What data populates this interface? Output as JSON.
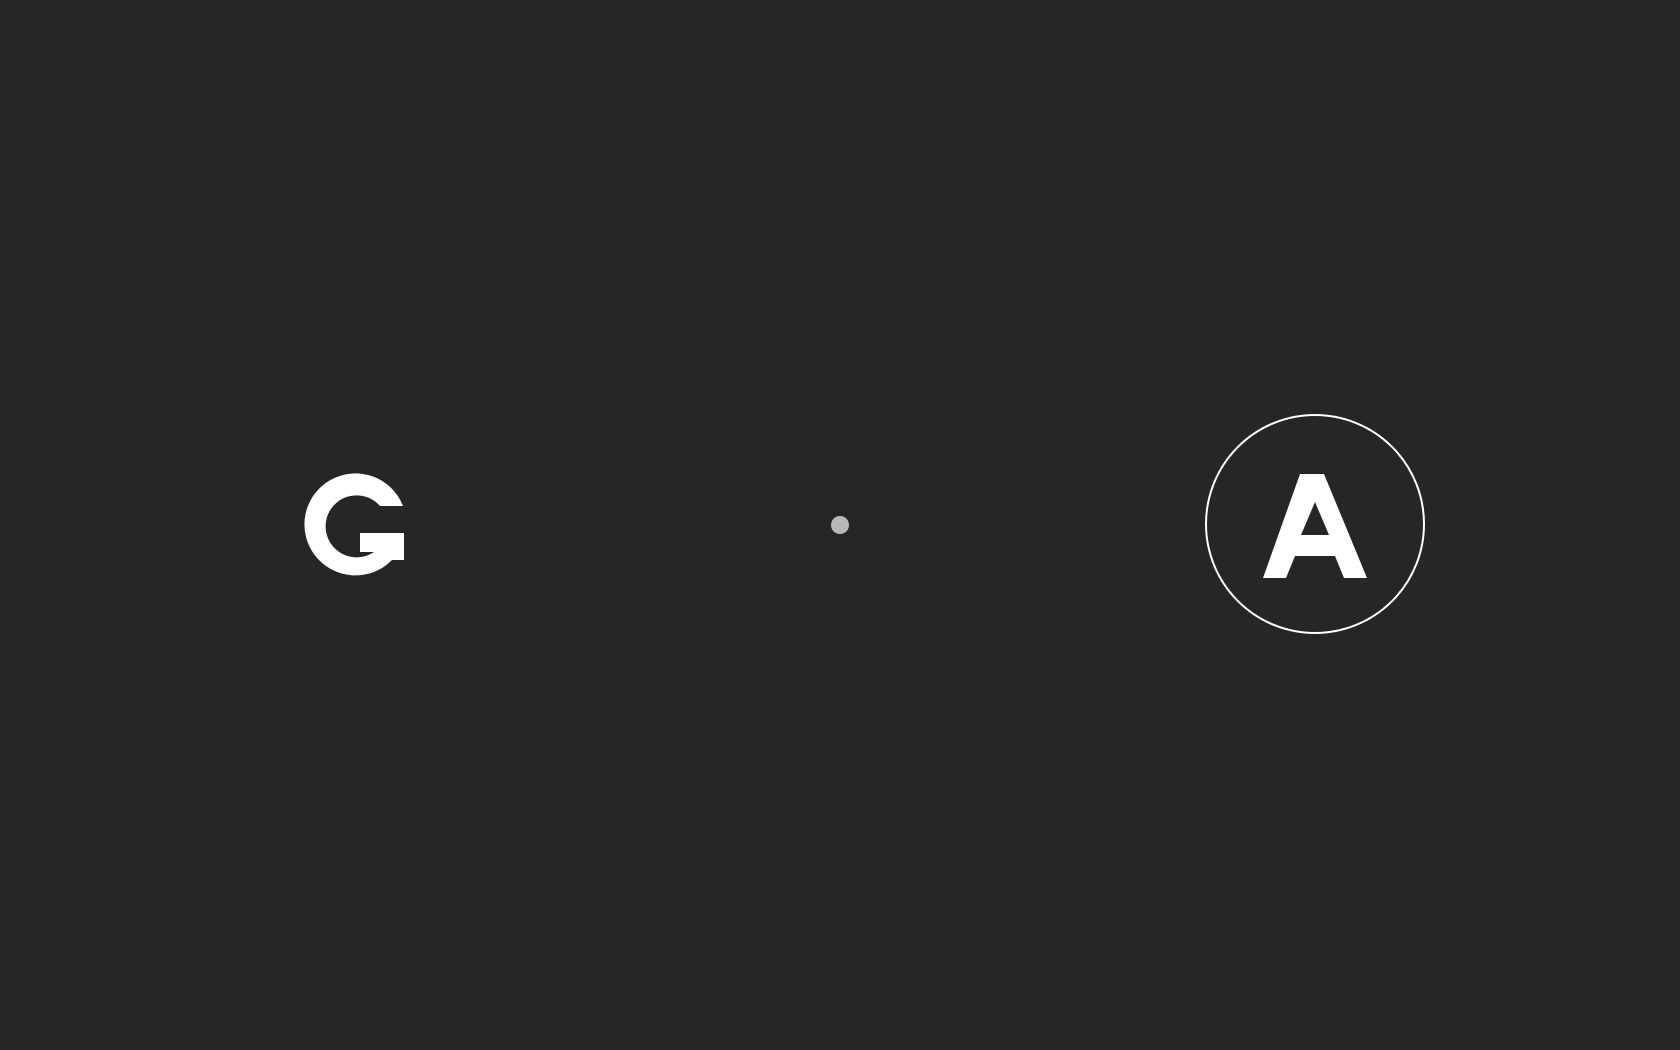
{
  "colors": {
    "background": "#262626",
    "glyph": "#ffffff",
    "center_dot": "#b8b8b8",
    "selection_ring": "#ffffff"
  },
  "options": {
    "left": {
      "letter": "G",
      "icon": "g-letter-mark",
      "selected": false
    },
    "right": {
      "letter": "A",
      "icon": "a-letter-mark",
      "selected": true
    }
  },
  "center": {
    "icon": "center-dot"
  }
}
